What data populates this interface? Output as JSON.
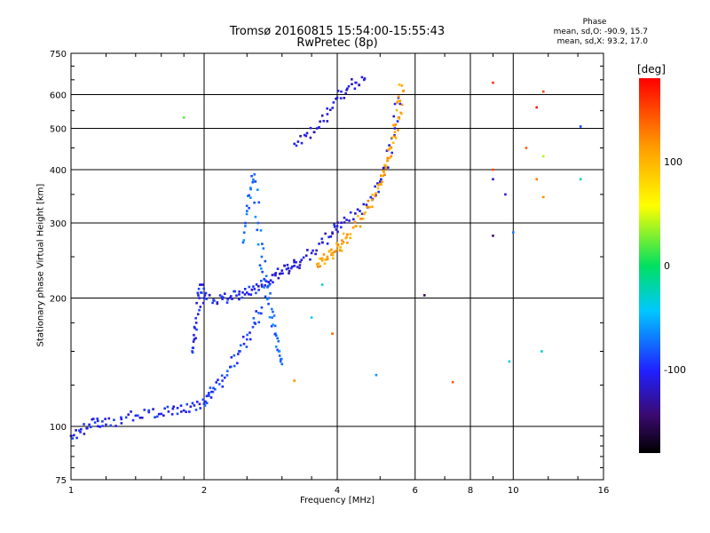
{
  "chart_data": {
    "type": "scatter",
    "title": "Tromsø 20160815 15:54:00-15:55:43",
    "subtitle": "RwPretec (8p)",
    "xlabel": "Frequency [MHz]",
    "ylabel": "Stationary phase Virtual Height [km]",
    "xscale": "log",
    "yscale": "log",
    "xlim": [
      1,
      16
    ],
    "ylim": [
      75,
      750
    ],
    "x_ticks": [
      "1",
      "2",
      "4",
      "6",
      "8",
      "10",
      "16"
    ],
    "y_ticks": [
      "75",
      "100",
      "200",
      "300",
      "400",
      "500",
      "600",
      "750"
    ],
    "grid": true,
    "stats": {
      "heading": "Phase",
      "o_mode": "mean, sd,O: -90.9, 15.7",
      "x_mode": "mean, sd,X: 93.2, 17.0"
    },
    "colorbar": {
      "label": "[deg]",
      "range": [
        -180,
        180
      ],
      "ticks": [
        "100",
        "0",
        "-100"
      ],
      "colors": [
        "#000000",
        "#3a0a6e",
        "#2020ff",
        "#00c8ff",
        "#00e060",
        "#ffff00",
        "#ff9900",
        "#ff0000"
      ]
    },
    "series": [
      {
        "x": [
          1.0,
          1.05,
          1.1,
          1.15,
          1.2,
          1.3,
          1.4,
          1.5,
          1.6,
          1.7,
          1.8,
          1.9,
          2.0
        ],
        "y": [
          95,
          97,
          101,
          103,
          101,
          104,
          106,
          108,
          107,
          110,
          109,
          112,
          113
        ],
        "phase": -100
      },
      {
        "x": [
          2.0,
          2.05,
          2.1,
          2.2,
          2.3,
          2.4,
          2.5,
          2.6,
          2.7
        ],
        "y": [
          113,
          118,
          123,
          128,
          138,
          150,
          160,
          175,
          190
        ],
        "phase": -90
      },
      {
        "x": [
          1.88,
          1.9,
          1.92,
          1.95,
          1.97,
          2.0,
          2.1,
          2.2,
          2.3,
          2.4,
          2.5,
          2.6,
          2.7,
          2.8
        ],
        "y": [
          150,
          160,
          175,
          200,
          215,
          200,
          198,
          199,
          202,
          204,
          206,
          210,
          215,
          218
        ],
        "phase": -100
      },
      {
        "x": [
          2.8,
          2.9,
          3.0,
          3.1,
          3.2,
          3.3,
          3.5,
          3.7,
          3.9,
          4.0,
          4.2,
          4.5,
          4.8,
          5.0,
          5.2,
          5.4,
          5.5
        ],
        "y": [
          218,
          226,
          232,
          235,
          238,
          243,
          255,
          270,
          285,
          295,
          305,
          320,
          340,
          375,
          420,
          500,
          590
        ],
        "phase": -110
      },
      {
        "x": [
          2.45,
          2.5,
          2.55,
          2.6,
          2.65,
          2.7,
          2.75,
          2.8,
          2.85,
          2.9,
          2.95,
          3.0
        ],
        "y": [
          270,
          320,
          360,
          390,
          300,
          250,
          220,
          200,
          180,
          165,
          150,
          140
        ],
        "phase": -75
      },
      {
        "x": [
          3.2,
          3.4,
          3.6,
          3.8,
          4.0,
          4.2,
          4.4,
          4.6
        ],
        "y": [
          460,
          480,
          500,
          540,
          590,
          615,
          640,
          650
        ],
        "phase": -110
      },
      {
        "x": [
          3.6,
          3.7,
          3.8,
          3.9,
          4.0,
          4.1,
          4.2,
          4.4,
          4.6,
          4.8,
          5.0,
          5.1,
          5.2,
          5.3,
          5.4,
          5.5,
          5.55,
          5.6
        ],
        "y": [
          240,
          245,
          250,
          255,
          260,
          268,
          278,
          295,
          315,
          340,
          370,
          395,
          420,
          450,
          490,
          530,
          580,
          630
        ],
        "phase": 110
      }
    ],
    "scatter_points": [
      {
        "x": 1.8,
        "y": 530,
        "phase": 20
      },
      {
        "x": 6.3,
        "y": 203,
        "phase": -150
      },
      {
        "x": 7.3,
        "y": 127,
        "phase": 140
      },
      {
        "x": 4.9,
        "y": 132,
        "phase": -60
      },
      {
        "x": 9.0,
        "y": 640,
        "phase": 160
      },
      {
        "x": 9.0,
        "y": 400,
        "phase": 150
      },
      {
        "x": 9.0,
        "y": 380,
        "phase": -120
      },
      {
        "x": 9.0,
        "y": 280,
        "phase": -140
      },
      {
        "x": 9.6,
        "y": 350,
        "phase": -110
      },
      {
        "x": 9.8,
        "y": 142,
        "phase": -40
      },
      {
        "x": 10.0,
        "y": 285,
        "phase": -70
      },
      {
        "x": 10.7,
        "y": 450,
        "phase": 140
      },
      {
        "x": 11.3,
        "y": 560,
        "phase": 175
      },
      {
        "x": 11.3,
        "y": 380,
        "phase": 130
      },
      {
        "x": 11.7,
        "y": 610,
        "phase": 150
      },
      {
        "x": 11.7,
        "y": 430,
        "phase": 40
      },
      {
        "x": 11.7,
        "y": 345,
        "phase": 120
      },
      {
        "x": 11.6,
        "y": 150,
        "phase": -30
      },
      {
        "x": 14.2,
        "y": 505,
        "phase": -90
      },
      {
        "x": 14.2,
        "y": 380,
        "phase": -20
      },
      {
        "x": 3.9,
        "y": 165,
        "phase": 140
      },
      {
        "x": 3.5,
        "y": 180,
        "phase": -40
      },
      {
        "x": 3.7,
        "y": 215,
        "phase": -30
      },
      {
        "x": 3.2,
        "y": 128,
        "phase": 120
      }
    ]
  }
}
